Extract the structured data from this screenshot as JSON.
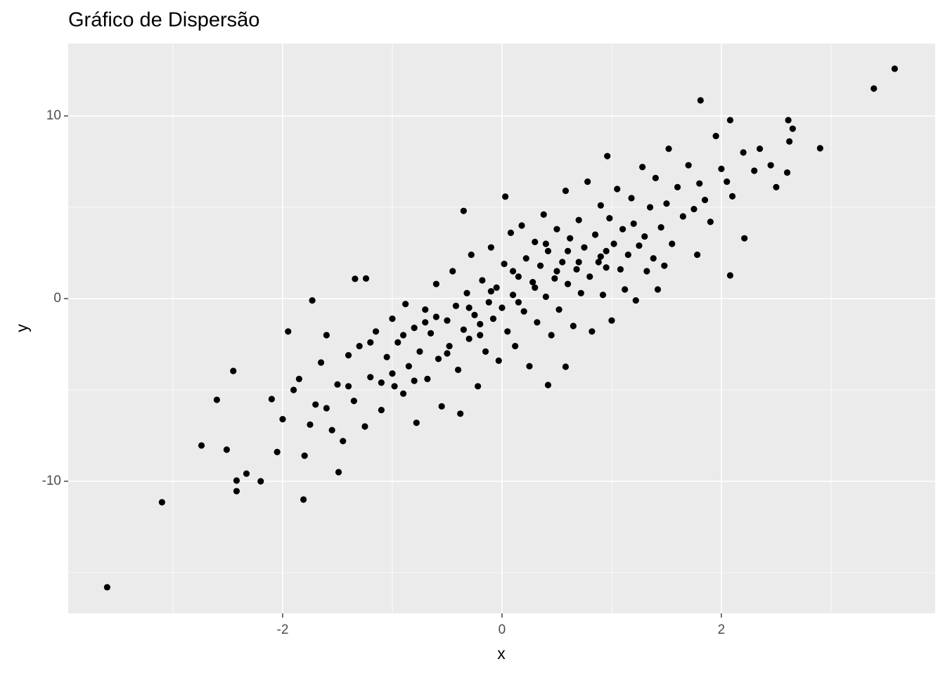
{
  "chart_data": {
    "type": "scatter",
    "title": "Gráfico de Dispersão",
    "x_label": "x",
    "y_label": "y",
    "color": "#000000",
    "grid": true,
    "xlim": [
      -3.955,
      3.949
    ],
    "ylim": [
      -17.23,
      13.96
    ],
    "xticks": [
      -2,
      0,
      2
    ],
    "yticks": [
      -10,
      0,
      10
    ],
    "xminor": [
      -3,
      -1,
      1,
      3
    ],
    "yminor": [
      -15,
      -5,
      5
    ],
    "x": [
      -3.6,
      -3.1,
      -2.74,
      -2.6,
      -2.51,
      -2.45,
      -2.42,
      -2.42,
      -2.33,
      -2.2,
      -1.81,
      -1.73,
      -1.49,
      -1.34,
      -1.24,
      3.39,
      3.58,
      1.81,
      2.9,
      2.08,
      2.21,
      2.61,
      2.65,
      2.08,
      2.5,
      0.42,
      0.58,
      -0.35,
      0.03,
      0.96,
      -2.1,
      -2.05,
      -2.0,
      -1.95,
      -1.9,
      -1.85,
      -1.8,
      -1.75,
      -1.7,
      -1.65,
      -1.6,
      -1.55,
      -1.5,
      -1.45,
      -1.4,
      -1.35,
      -1.3,
      -1.25,
      -1.2,
      -1.15,
      -1.1,
      -1.05,
      -1.0,
      -0.98,
      -0.95,
      -0.9,
      -0.88,
      -0.85,
      -0.8,
      -0.78,
      -0.75,
      -0.7,
      -0.68,
      -0.65,
      -0.6,
      -0.58,
      -0.55,
      -0.5,
      -0.48,
      -0.45,
      -0.42,
      -0.4,
      -0.38,
      -0.35,
      -0.32,
      -0.3,
      -0.28,
      -0.25,
      -0.22,
      -0.2,
      -0.18,
      -0.15,
      -0.12,
      -0.1,
      -0.08,
      -0.05,
      -0.03,
      0.0,
      0.02,
      0.05,
      0.08,
      0.1,
      0.12,
      0.15,
      0.18,
      0.2,
      0.22,
      0.25,
      0.28,
      0.3,
      0.32,
      0.35,
      0.38,
      0.4,
      0.42,
      0.45,
      0.48,
      0.5,
      0.52,
      0.55,
      0.58,
      0.6,
      0.62,
      0.65,
      0.68,
      0.7,
      0.72,
      0.75,
      0.78,
      0.8,
      0.82,
      0.85,
      0.88,
      0.9,
      0.92,
      0.95,
      0.98,
      1.0,
      1.02,
      1.05,
      1.08,
      1.1,
      1.12,
      1.15,
      1.18,
      1.2,
      1.22,
      1.25,
      1.28,
      1.3,
      1.32,
      1.35,
      1.38,
      1.4,
      1.42,
      1.45,
      1.48,
      1.5,
      1.52,
      1.55,
      1.6,
      1.65,
      1.7,
      1.75,
      1.78,
      1.8,
      1.85,
      1.9,
      1.95,
      2.0,
      2.05,
      2.1,
      2.2,
      2.3,
      2.35,
      2.45,
      2.6,
      2.62,
      -1.0,
      -0.9,
      -0.7,
      -0.5,
      -0.3,
      -0.1,
      0.1,
      0.3,
      0.5,
      0.7,
      0.9,
      0.95,
      0.15,
      -0.2,
      -0.6,
      -1.2,
      -1.4,
      -1.6,
      -1.1,
      -0.8,
      0.4,
      0.6
    ],
    "values": [
      -15.8,
      -11.15,
      -8.04,
      -5.54,
      -8.27,
      -3.96,
      -9.96,
      -10.54,
      -9.58,
      -10.0,
      -11.0,
      -0.1,
      -9.5,
      1.08,
      1.1,
      11.5,
      12.58,
      10.85,
      8.23,
      1.27,
      3.3,
      9.77,
      9.3,
      9.77,
      6.1,
      -4.73,
      -3.73,
      4.8,
      5.58,
      7.8,
      -5.5,
      -8.4,
      -6.6,
      -1.8,
      -5.0,
      -4.4,
      -8.6,
      -6.9,
      -5.8,
      -3.5,
      -2.0,
      -7.2,
      -4.7,
      -7.8,
      -3.1,
      -5.6,
      -2.6,
      -7.0,
      -4.3,
      -1.8,
      -6.1,
      -3.2,
      -1.1,
      -4.8,
      -2.4,
      -5.2,
      -0.3,
      -3.7,
      -1.6,
      -6.8,
      -2.9,
      -0.6,
      -4.4,
      -1.9,
      0.8,
      -3.3,
      -5.9,
      -1.2,
      -2.6,
      1.5,
      -0.4,
      -3.9,
      -6.3,
      -1.7,
      0.3,
      -2.2,
      2.4,
      -0.9,
      -4.8,
      -1.4,
      1.0,
      -2.9,
      -0.2,
      2.8,
      -1.1,
      0.6,
      -3.4,
      -0.5,
      1.9,
      -1.8,
      3.6,
      0.2,
      -2.6,
      1.2,
      4.0,
      -0.7,
      2.2,
      -3.7,
      0.9,
      3.1,
      -1.3,
      1.8,
      4.6,
      0.1,
      2.6,
      -2.0,
      1.1,
      3.8,
      -0.6,
      2.0,
      5.9,
      0.8,
      3.3,
      -1.5,
      1.6,
      4.3,
      0.3,
      2.8,
      6.4,
      1.2,
      -1.8,
      3.5,
      2.0,
      5.1,
      0.2,
      2.6,
      4.4,
      -1.2,
      3.0,
      6.0,
      1.6,
      3.8,
      0.5,
      2.4,
      5.5,
      4.1,
      -0.1,
      2.9,
      7.2,
      3.4,
      1.5,
      5.0,
      2.2,
      6.6,
      0.5,
      3.9,
      1.8,
      5.2,
      8.2,
      3.0,
      6.1,
      4.5,
      7.3,
      4.9,
      2.4,
      6.3,
      5.4,
      4.2,
      8.9,
      7.1,
      6.4,
      5.6,
      8.0,
      7.0,
      8.2,
      7.3,
      6.9,
      8.6,
      -4.1,
      -2.0,
      -1.3,
      -3.0,
      -0.5,
      0.4,
      1.5,
      0.6,
      1.5,
      2.0,
      2.3,
      1.7,
      -0.2,
      -2.0,
      -1.0,
      -2.4,
      -4.8,
      -6.0,
      -4.6,
      -4.5,
      3.0,
      2.6
    ]
  }
}
